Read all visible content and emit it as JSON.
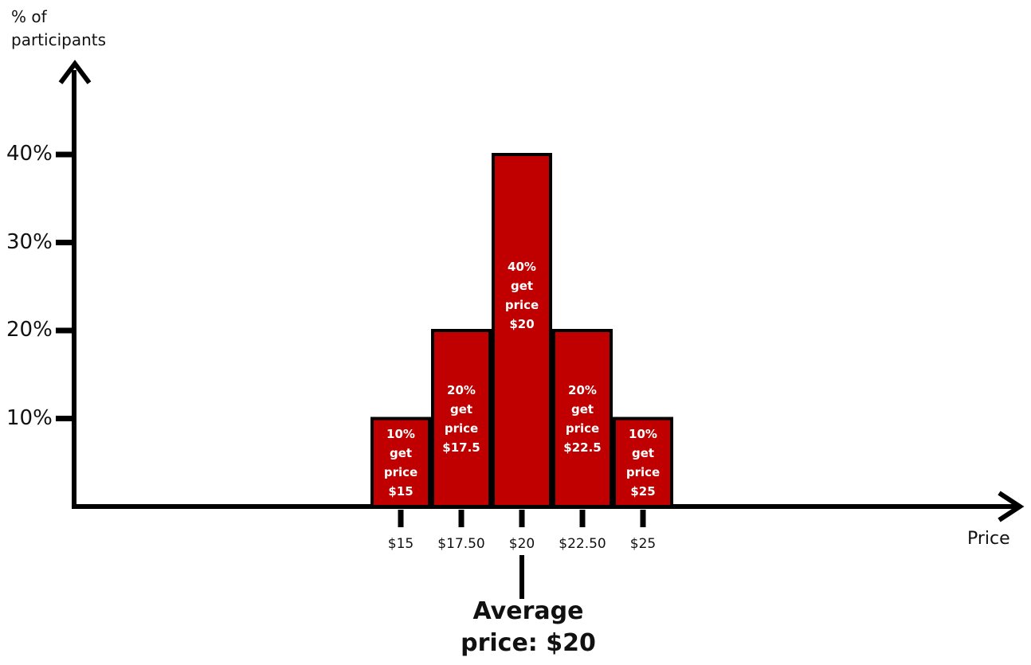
{
  "chart_data": {
    "type": "bar",
    "ylabel_lines": [
      "% of",
      "participants"
    ],
    "xlabel": "Price",
    "yticks": [
      {
        "value": 10,
        "label": "10%"
      },
      {
        "value": 20,
        "label": "20%"
      },
      {
        "value": 30,
        "label": "30%"
      },
      {
        "value": 40,
        "label": "40%"
      }
    ],
    "ylim": [
      0,
      45
    ],
    "bars": [
      {
        "x": 15,
        "value": 10,
        "tick": "$15",
        "label_lines": [
          "10%",
          "get",
          "price",
          "$15"
        ]
      },
      {
        "x": 17.5,
        "value": 20,
        "tick": "$17.50",
        "label_lines": [
          "20%",
          "get",
          "price",
          "$17.5"
        ]
      },
      {
        "x": 20,
        "value": 40,
        "tick": "$20",
        "label_lines": [
          "40%",
          "get",
          "price",
          "$20"
        ]
      },
      {
        "x": 22.5,
        "value": 20,
        "tick": "$22.50",
        "label_lines": [
          "20%",
          "get",
          "price",
          "$22.5"
        ]
      },
      {
        "x": 25,
        "value": 10,
        "tick": "$25",
        "label_lines": [
          "10%",
          "get",
          "price",
          "$25"
        ]
      }
    ],
    "average": {
      "value": 20,
      "label_lines": [
        "Average",
        "price:  $20"
      ]
    },
    "bar_color": "#c00000",
    "outline_color": "#000000"
  }
}
